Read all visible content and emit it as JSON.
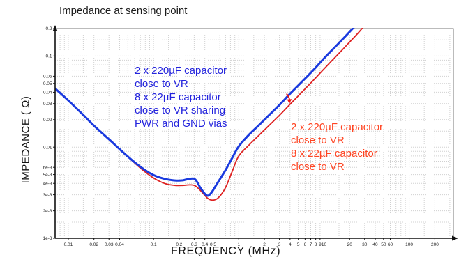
{
  "chart_data": {
    "type": "line",
    "title": "Impedance at sensing point",
    "xlabel": "FREQUENCY (MHz)",
    "ylabel": "IMPEDANCE ( Ω)",
    "x_scale": "log",
    "y_scale": "log",
    "xlim": [
      0.007,
      330
    ],
    "ylim": [
      0.001,
      0.2
    ],
    "grid": true,
    "background": "#ffffff",
    "grid_color": "#d0d0d0",
    "x_ticks": [
      {
        "label": "0.01",
        "value": 0.01
      },
      {
        "label": "0.02",
        "value": 0.02
      },
      {
        "label": "0.03",
        "value": 0.03
      },
      {
        "label": "0.04",
        "value": 0.04
      },
      {
        "label": "0.1",
        "value": 0.1
      },
      {
        "label": "0.2",
        "value": 0.2
      },
      {
        "label": "0.3",
        "value": 0.3
      },
      {
        "label": "0.4",
        "value": 0.4
      },
      {
        "label": "0.5",
        "value": 0.5
      },
      {
        "label": "1",
        "value": 1
      },
      {
        "label": "2",
        "value": 2
      },
      {
        "label": "3",
        "value": 3
      },
      {
        "label": "4",
        "value": 4
      },
      {
        "label": "5",
        "value": 5
      },
      {
        "label": "6",
        "value": 6
      },
      {
        "label": "7",
        "value": 7
      },
      {
        "label": "8",
        "value": 8
      },
      {
        "label": "9",
        "value": 9
      },
      {
        "label": "10",
        "value": 10
      },
      {
        "label": "20",
        "value": 20
      },
      {
        "label": "30",
        "value": 30
      },
      {
        "label": "40",
        "value": 40
      },
      {
        "label": "50",
        "value": 50
      },
      {
        "label": "60",
        "value": 60
      },
      {
        "label": "100",
        "value": 100
      },
      {
        "label": "200",
        "value": 200
      }
    ],
    "y_ticks": [
      {
        "label": "0.2",
        "value": 0.2
      },
      {
        "label": "0.1",
        "value": 0.1
      },
      {
        "label": "0.06",
        "value": 0.06
      },
      {
        "label": "0.05",
        "value": 0.05
      },
      {
        "label": "0.04",
        "value": 0.04
      },
      {
        "label": "0.03",
        "value": 0.03
      },
      {
        "label": "0.02",
        "value": 0.02
      },
      {
        "label": "0.01",
        "value": 0.01
      },
      {
        "label": "6e-3",
        "value": 0.006
      },
      {
        "label": "5e-3",
        "value": 0.005
      },
      {
        "label": "4e-3",
        "value": 0.004
      },
      {
        "label": "3e-3",
        "value": 0.003
      },
      {
        "label": "2e-3",
        "value": 0.002
      },
      {
        "label": "1e-3",
        "value": 0.001
      }
    ],
    "series": [
      {
        "id": "red-curve",
        "color": "#de2121",
        "stroke_width": 1.8,
        "points": [
          [
            0.007,
            0.044
          ],
          [
            0.01,
            0.0325
          ],
          [
            0.015,
            0.0225
          ],
          [
            0.02,
            0.0172
          ],
          [
            0.03,
            0.0122
          ],
          [
            0.04,
            0.0095
          ],
          [
            0.055,
            0.0072
          ],
          [
            0.07,
            0.0059
          ],
          [
            0.09,
            0.0049
          ],
          [
            0.11,
            0.00435
          ],
          [
            0.14,
            0.00395
          ],
          [
            0.18,
            0.0038
          ],
          [
            0.22,
            0.0038
          ],
          [
            0.27,
            0.00385
          ],
          [
            0.31,
            0.00375
          ],
          [
            0.36,
            0.0033
          ],
          [
            0.43,
            0.00275
          ],
          [
            0.5,
            0.00262
          ],
          [
            0.58,
            0.0028
          ],
          [
            0.7,
            0.0036
          ],
          [
            0.85,
            0.0056
          ],
          [
            1,
            0.008
          ],
          [
            1.3,
            0.0104
          ],
          [
            1.7,
            0.0133
          ],
          [
            2.2,
            0.0168
          ],
          [
            3,
            0.0223
          ],
          [
            4,
            0.0295
          ],
          [
            5.5,
            0.04
          ],
          [
            7.5,
            0.054
          ],
          [
            10,
            0.072
          ],
          [
            14,
            0.1
          ],
          [
            19,
            0.135
          ],
          [
            26,
            0.185
          ],
          [
            32,
            0.235
          ]
        ]
      },
      {
        "id": "blue-curve",
        "color": "#1a3adf",
        "stroke_width": 3,
        "points": [
          [
            0.007,
            0.044
          ],
          [
            0.01,
            0.0325
          ],
          [
            0.015,
            0.0225
          ],
          [
            0.02,
            0.0172
          ],
          [
            0.03,
            0.0122
          ],
          [
            0.04,
            0.0095
          ],
          [
            0.055,
            0.0073
          ],
          [
            0.07,
            0.0061
          ],
          [
            0.09,
            0.0052
          ],
          [
            0.11,
            0.00475
          ],
          [
            0.14,
            0.00445
          ],
          [
            0.18,
            0.0043
          ],
          [
            0.22,
            0.00432
          ],
          [
            0.27,
            0.0045
          ],
          [
            0.31,
            0.0044
          ],
          [
            0.36,
            0.0035
          ],
          [
            0.42,
            0.00295
          ],
          [
            0.47,
            0.0031
          ],
          [
            0.55,
            0.0039
          ],
          [
            0.7,
            0.0056
          ],
          [
            0.85,
            0.0078
          ],
          [
            1,
            0.0102
          ],
          [
            1.3,
            0.0135
          ],
          [
            1.7,
            0.0172
          ],
          [
            2.2,
            0.0218
          ],
          [
            3,
            0.029
          ],
          [
            4,
            0.0385
          ],
          [
            5.5,
            0.052
          ],
          [
            7.5,
            0.07
          ],
          [
            10,
            0.094
          ],
          [
            14,
            0.13
          ],
          [
            19,
            0.175
          ],
          [
            26,
            0.24
          ]
        ]
      }
    ],
    "annotations": [
      {
        "id": "blue-note",
        "color": "#2323dd",
        "lines": [
          "2 x 220µF capacitor",
          "close to VR",
          "8 x 22µF capacitor",
          "close to VR sharing",
          "PWR and GND vias"
        ]
      },
      {
        "id": "red-note",
        "color": "#ff4422",
        "lines": [
          "2 x 220µF capacitor",
          "close to VR",
          "8 x 22µF capacitor",
          "close to VR"
        ]
      }
    ],
    "shift_arrow": {
      "color": "#ee1111",
      "at_mhz": 4,
      "from_ohm": 0.04,
      "to_ohm": 0.0305
    }
  }
}
